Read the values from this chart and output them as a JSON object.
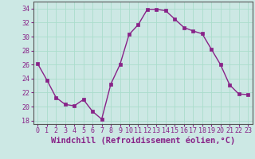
{
  "x": [
    0,
    1,
    2,
    3,
    4,
    5,
    6,
    7,
    8,
    9,
    10,
    11,
    12,
    13,
    14,
    15,
    16,
    17,
    18,
    19,
    20,
    21,
    22,
    23
  ],
  "y": [
    26.1,
    23.8,
    21.3,
    20.3,
    20.1,
    21.0,
    19.3,
    18.2,
    23.2,
    26.0,
    30.3,
    31.7,
    33.9,
    33.9,
    33.7,
    32.5,
    31.3,
    30.8,
    30.4,
    28.2,
    26.0,
    23.1,
    21.8,
    21.7
  ],
  "line_color": "#882288",
  "marker": "s",
  "markersize": 2.2,
  "linewidth": 1.0,
  "xlabel": "Windchill (Refroidissement éolien,°C)",
  "xlabel_fontsize": 7.5,
  "xlim": [
    -0.5,
    23.5
  ],
  "ylim": [
    17.5,
    35.0
  ],
  "yticks": [
    18,
    20,
    22,
    24,
    26,
    28,
    30,
    32,
    34
  ],
  "xticks": [
    0,
    1,
    2,
    3,
    4,
    5,
    6,
    7,
    8,
    9,
    10,
    11,
    12,
    13,
    14,
    15,
    16,
    17,
    18,
    19,
    20,
    21,
    22,
    23
  ],
  "grid_color": "#aaddcc",
  "bg_color": "#cce8e4",
  "tick_fontsize": 6.0,
  "fig_bg": "#cce8e4",
  "spine_color": "#555555",
  "xlabel_color": "#882288"
}
